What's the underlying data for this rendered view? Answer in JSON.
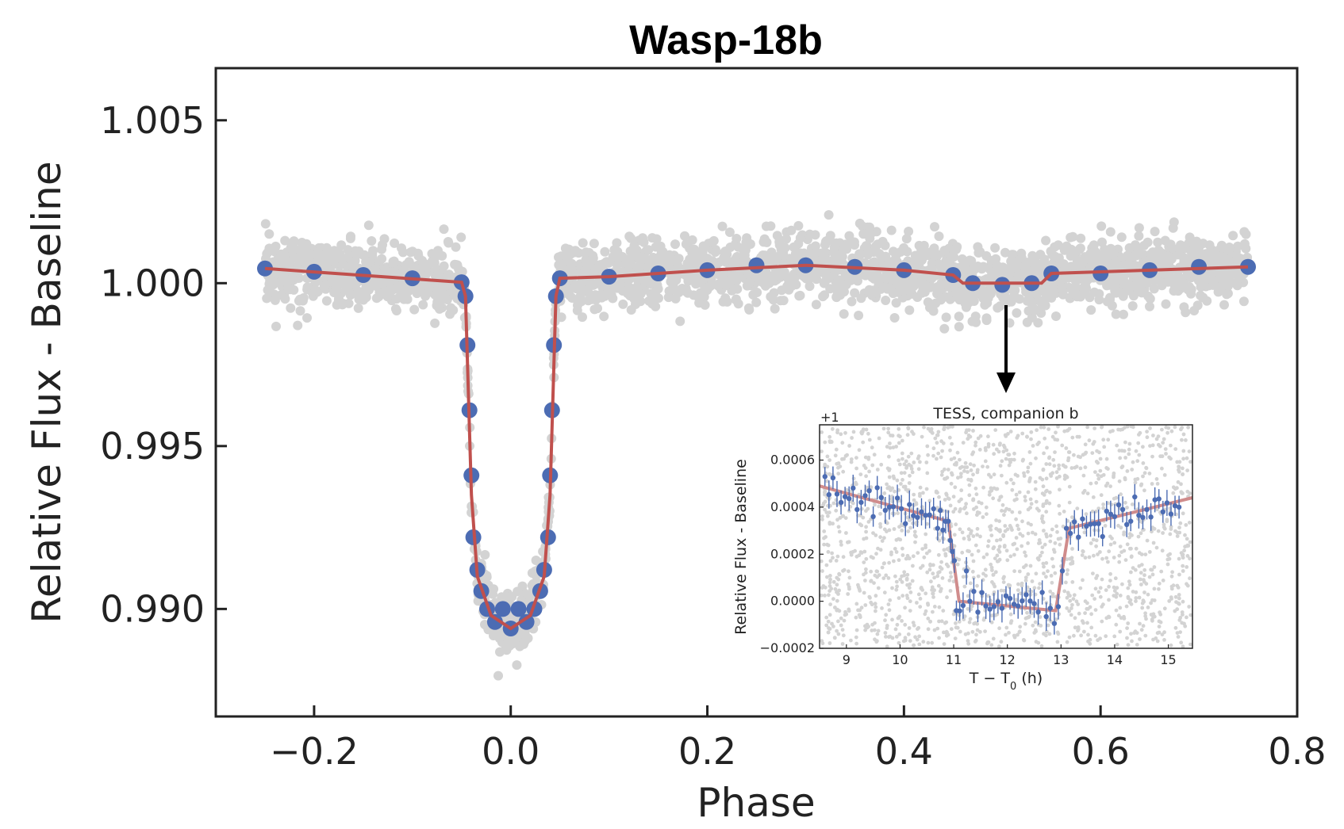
{
  "chart_data": [
    {
      "type": "scatter",
      "title": "Wasp-18b",
      "xlabel": "Phase",
      "ylabel": "Relative Flux - Baseline",
      "xlim": [
        -0.3,
        0.8
      ],
      "ylim": [
        0.9867,
        1.0066
      ],
      "xticks": [
        "−0.2",
        "0.0",
        "0.2",
        "0.4",
        "0.6",
        "0.8"
      ],
      "xtick_values": [
        -0.2,
        0.0,
        0.2,
        0.4,
        0.6,
        0.8
      ],
      "yticks": [
        "0.990",
        "0.995",
        "1.000",
        "1.005"
      ],
      "ytick_values": [
        0.99,
        0.995,
        1.0,
        1.005
      ],
      "grid": false,
      "colors": {
        "raw": "#d3d3d3",
        "binned": "#4c6cb3",
        "model": "#c0504d",
        "axes": "#222222"
      },
      "series": [
        {
          "role": "raw-data",
          "x_range": [
            -0.25,
            0.75
          ],
          "scatter_band": 0.0012
        },
        {
          "role": "binned-data",
          "points": [
            [
              -0.25,
              1.00045
            ],
            [
              -0.2,
              1.00035
            ],
            [
              -0.15,
              1.00025
            ],
            [
              -0.1,
              1.00015
            ],
            [
              -0.05,
              1.00003
            ],
            [
              -0.046,
              0.9996
            ],
            [
              -0.044,
              0.9981
            ],
            [
              -0.042,
              0.9961
            ],
            [
              -0.04,
              0.9941
            ],
            [
              -0.038,
              0.9922
            ],
            [
              -0.034,
              0.9912
            ],
            [
              -0.03,
              0.99055
            ],
            [
              -0.024,
              0.99
            ],
            [
              -0.016,
              0.9896
            ],
            [
              -0.008,
              0.99
            ],
            [
              0.0,
              0.9894
            ],
            [
              0.008,
              0.99
            ],
            [
              0.016,
              0.9896
            ],
            [
              0.024,
              0.99
            ],
            [
              0.03,
              0.99055
            ],
            [
              0.034,
              0.9912
            ],
            [
              0.038,
              0.9922
            ],
            [
              0.04,
              0.9941
            ],
            [
              0.042,
              0.9961
            ],
            [
              0.044,
              0.9981
            ],
            [
              0.046,
              0.9996
            ],
            [
              0.05,
              1.00015
            ],
            [
              0.1,
              1.0002
            ],
            [
              0.15,
              1.0003
            ],
            [
              0.2,
              1.0004
            ],
            [
              0.25,
              1.00055
            ],
            [
              0.3,
              1.00055
            ],
            [
              0.35,
              1.0005
            ],
            [
              0.4,
              1.0004
            ],
            [
              0.45,
              1.00025
            ],
            [
              0.47,
              1.0
            ],
            [
              0.5,
              0.99995
            ],
            [
              0.53,
              1.0
            ],
            [
              0.55,
              1.0003
            ],
            [
              0.6,
              1.0003
            ],
            [
              0.65,
              1.0004
            ],
            [
              0.7,
              1.0005
            ],
            [
              0.75,
              1.0005
            ]
          ]
        },
        {
          "role": "model",
          "points": [
            [
              -0.25,
              1.00045
            ],
            [
              -0.05,
              1.00003
            ],
            [
              -0.046,
              0.9996
            ],
            [
              -0.04,
              0.9935
            ],
            [
              -0.034,
              0.991
            ],
            [
              -0.02,
              0.9898
            ],
            [
              0.0,
              0.9894
            ],
            [
              0.02,
              0.9898
            ],
            [
              0.034,
              0.991
            ],
            [
              0.04,
              0.9935
            ],
            [
              0.046,
              0.9996
            ],
            [
              0.05,
              1.00015
            ],
            [
              0.1,
              1.0002
            ],
            [
              0.2,
              1.0004
            ],
            [
              0.3,
              1.00055
            ],
            [
              0.4,
              1.0004
            ],
            [
              0.45,
              1.00025
            ],
            [
              0.46,
              1.0
            ],
            [
              0.54,
              1.0
            ],
            [
              0.55,
              1.0003
            ],
            [
              0.65,
              1.0004
            ],
            [
              0.75,
              1.0005
            ]
          ]
        }
      ]
    },
    {
      "type": "scatter",
      "title": "TESS, companion b",
      "offset_label": "+1",
      "xlabel": "T − T",
      "xlabel_sub": "0",
      "xlabel_unit": " (h)",
      "ylabel": "Relative Flux - Baseline",
      "xlim": [
        8.5,
        15.45
      ],
      "ylim": [
        -0.0002,
        0.00075
      ],
      "xticks": [
        "9",
        "10",
        "11",
        "12",
        "13",
        "14",
        "15"
      ],
      "xtick_values": [
        9,
        10,
        11,
        12,
        13,
        14,
        15
      ],
      "yticks": [
        "−0.0002",
        "0.0000",
        "0.0002",
        "0.0004",
        "0.0006"
      ],
      "ytick_values": [
        -0.0002,
        0.0,
        0.0002,
        0.0004,
        0.0006
      ],
      "colors": {
        "raw": "#d3d3d3",
        "binned": "#4c6cb3",
        "model": "#d08c8c"
      },
      "series": [
        {
          "role": "binned-data",
          "points": [
            [
              8.6,
              0.00053
            ],
            [
              8.9,
              0.00042
            ],
            [
              9.2,
              0.00039
            ],
            [
              9.5,
              0.00036
            ],
            [
              9.8,
              0.0004
            ],
            [
              10.1,
              0.00033
            ],
            [
              10.4,
              0.00038
            ],
            [
              10.7,
              0.00031
            ],
            [
              10.9,
              0.00034
            ],
            [
              11.05,
              -4e-05
            ],
            [
              11.3,
              0.0
            ],
            [
              11.6,
              -2e-05
            ],
            [
              11.9,
              -3e-05
            ],
            [
              12.2,
              -2e-05
            ],
            [
              12.5,
              -1e-05
            ],
            [
              12.8,
              -3e-05
            ],
            [
              13.1,
              0.00031
            ],
            [
              13.4,
              0.00035
            ],
            [
              13.7,
              0.00033
            ],
            [
              14.0,
              0.00036
            ],
            [
              14.3,
              0.00034
            ],
            [
              14.6,
              0.00039
            ],
            [
              14.9,
              0.00038
            ],
            [
              15.2,
              0.0004
            ]
          ]
        },
        {
          "role": "model",
          "points": [
            [
              8.5,
              0.00049
            ],
            [
              10.9,
              0.00034
            ],
            [
              11.1,
              0.0
            ],
            [
              12.9,
              -4e-05
            ],
            [
              13.15,
              0.00031
            ],
            [
              15.45,
              0.00044
            ]
          ]
        }
      ]
    }
  ]
}
